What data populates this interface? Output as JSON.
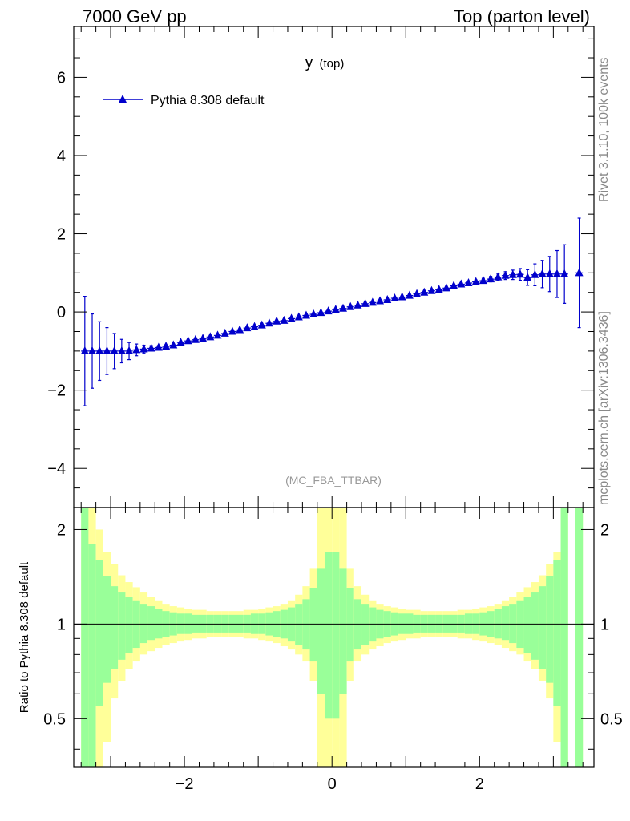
{
  "header": {
    "left": "7000 GeV pp",
    "right": "Top (parton level)"
  },
  "side": {
    "rivet": "Rivet 3.1.10,  100k events",
    "mcplots": "mcplots.cern.ch [arXiv:1306.3436]"
  },
  "chart_data": {
    "type": "scatter",
    "title": "y",
    "title_sub": "(top)",
    "watermark": "(MC_FBA_TTBAR)",
    "xlim": [
      -3.5,
      3.55
    ],
    "ylim": [
      -5,
      7.3
    ],
    "xticks": [
      -2,
      0,
      2
    ],
    "yticks": [
      -4,
      -2,
      0,
      2,
      4,
      6
    ],
    "grid": false,
    "legend": {
      "position": "top-left",
      "entries": [
        "Pythia 8.308 default"
      ]
    },
    "colors": {
      "series": "#0000cc",
      "band_inner": "#99ff99",
      "band_outer": "#ffff99"
    },
    "series": [
      {
        "name": "Pythia 8.308 default",
        "x": [
          -3.35,
          -3.25,
          -3.15,
          -3.05,
          -2.95,
          -2.85,
          -2.75,
          -2.65,
          -2.55,
          -2.45,
          -2.35,
          -2.25,
          -2.15,
          -2.05,
          -1.95,
          -1.85,
          -1.75,
          -1.65,
          -1.55,
          -1.45,
          -1.35,
          -1.25,
          -1.15,
          -1.05,
          -0.95,
          -0.85,
          -0.75,
          -0.65,
          -0.55,
          -0.45,
          -0.35,
          -0.25,
          -0.15,
          -0.05,
          0.05,
          0.15,
          0.25,
          0.35,
          0.45,
          0.55,
          0.65,
          0.75,
          0.85,
          0.95,
          1.05,
          1.15,
          1.25,
          1.35,
          1.45,
          1.55,
          1.65,
          1.75,
          1.85,
          1.95,
          2.05,
          2.15,
          2.25,
          2.35,
          2.45,
          2.55,
          2.65,
          2.75,
          2.85,
          2.95,
          3.05,
          3.15,
          3.35
        ],
        "y": [
          -1.0,
          -1.0,
          -1.0,
          -1.0,
          -1.0,
          -1.0,
          -1.0,
          -0.97,
          -0.95,
          -0.93,
          -0.91,
          -0.88,
          -0.85,
          -0.78,
          -0.74,
          -0.71,
          -0.68,
          -0.64,
          -0.6,
          -0.55,
          -0.5,
          -0.46,
          -0.41,
          -0.38,
          -0.34,
          -0.29,
          -0.24,
          -0.22,
          -0.17,
          -0.13,
          -0.09,
          -0.06,
          -0.02,
          0.02,
          0.06,
          0.09,
          0.13,
          0.17,
          0.21,
          0.24,
          0.28,
          0.31,
          0.35,
          0.38,
          0.42,
          0.46,
          0.5,
          0.54,
          0.57,
          0.61,
          0.67,
          0.71,
          0.74,
          0.77,
          0.8,
          0.84,
          0.89,
          0.93,
          0.95,
          0.96,
          0.88,
          0.95,
          0.97,
          0.97,
          0.97,
          0.97,
          1.0
        ],
        "yerr": [
          1.4,
          0.95,
          0.75,
          0.6,
          0.45,
          0.3,
          0.22,
          0.15,
          0.1,
          0.07,
          0.05,
          0.04,
          0.03,
          0.02,
          0.02,
          0.02,
          0.02,
          0.02,
          0.02,
          0.02,
          0.02,
          0.02,
          0.02,
          0.02,
          0.02,
          0.02,
          0.02,
          0.02,
          0.02,
          0.02,
          0.02,
          0.02,
          0.02,
          0.02,
          0.02,
          0.02,
          0.02,
          0.02,
          0.02,
          0.02,
          0.02,
          0.02,
          0.02,
          0.02,
          0.02,
          0.02,
          0.02,
          0.02,
          0.02,
          0.03,
          0.03,
          0.04,
          0.05,
          0.05,
          0.06,
          0.07,
          0.08,
          0.1,
          0.12,
          0.15,
          0.2,
          0.28,
          0.35,
          0.45,
          0.6,
          0.75,
          1.4
        ]
      }
    ],
    "ratio": {
      "ylabel": "Ratio to Pythia 8.308 default",
      "ylim": [
        0.35,
        2.35
      ],
      "yticks": [
        0.5,
        1,
        2
      ],
      "reference": 1,
      "bins_x": [
        -3.35,
        -3.25,
        -3.15,
        -3.05,
        -2.95,
        -2.85,
        -2.75,
        -2.65,
        -2.55,
        -2.45,
        -2.35,
        -2.25,
        -2.15,
        -2.05,
        -1.95,
        -1.85,
        -1.75,
        -1.65,
        -1.55,
        -1.45,
        -1.35,
        -1.25,
        -1.15,
        -1.05,
        -0.95,
        -0.85,
        -0.75,
        -0.65,
        -0.55,
        -0.45,
        -0.35,
        -0.25,
        -0.15,
        -0.05,
        0.05,
        0.15,
        0.25,
        0.35,
        0.45,
        0.55,
        0.65,
        0.75,
        0.85,
        0.95,
        1.05,
        1.15,
        1.25,
        1.35,
        1.45,
        1.55,
        1.65,
        1.75,
        1.85,
        1.95,
        2.05,
        2.15,
        2.25,
        2.35,
        2.45,
        2.55,
        2.65,
        2.75,
        2.85,
        2.95,
        3.05,
        3.15,
        3.35
      ],
      "inner_up": [
        2.4,
        1.8,
        1.6,
        1.42,
        1.32,
        1.26,
        1.22,
        1.19,
        1.16,
        1.14,
        1.12,
        1.1,
        1.09,
        1.08,
        1.08,
        1.07,
        1.07,
        1.07,
        1.07,
        1.07,
        1.07,
        1.07,
        1.07,
        1.08,
        1.08,
        1.09,
        1.1,
        1.11,
        1.13,
        1.16,
        1.2,
        1.3,
        1.5,
        1.7,
        1.7,
        1.5,
        1.3,
        1.2,
        1.16,
        1.13,
        1.11,
        1.1,
        1.09,
        1.08,
        1.08,
        1.07,
        1.07,
        1.07,
        1.07,
        1.07,
        1.07,
        1.07,
        1.08,
        1.08,
        1.09,
        1.1,
        1.12,
        1.14,
        1.16,
        1.19,
        1.22,
        1.26,
        1.32,
        1.42,
        1.6,
        2.4,
        2.4
      ],
      "outer_up": [
        2.4,
        2.4,
        2.0,
        1.7,
        1.55,
        1.43,
        1.36,
        1.31,
        1.26,
        1.22,
        1.19,
        1.16,
        1.14,
        1.13,
        1.12,
        1.11,
        1.11,
        1.1,
        1.1,
        1.1,
        1.1,
        1.1,
        1.11,
        1.11,
        1.12,
        1.13,
        1.14,
        1.16,
        1.19,
        1.24,
        1.32,
        1.5,
        2.4,
        2.4,
        2.4,
        2.4,
        1.5,
        1.32,
        1.24,
        1.19,
        1.16,
        1.14,
        1.13,
        1.12,
        1.11,
        1.11,
        1.1,
        1.1,
        1.1,
        1.1,
        1.1,
        1.11,
        1.11,
        1.12,
        1.13,
        1.14,
        1.16,
        1.19,
        1.22,
        1.26,
        1.31,
        1.36,
        1.43,
        1.55,
        1.7,
        2.4,
        2.4
      ],
      "inner_dn": [
        0.3,
        0.3,
        0.55,
        0.65,
        0.72,
        0.77,
        0.81,
        0.84,
        0.87,
        0.89,
        0.9,
        0.91,
        0.92,
        0.93,
        0.93,
        0.94,
        0.94,
        0.94,
        0.94,
        0.94,
        0.94,
        0.94,
        0.94,
        0.93,
        0.93,
        0.92,
        0.91,
        0.9,
        0.88,
        0.86,
        0.83,
        0.76,
        0.6,
        0.5,
        0.5,
        0.6,
        0.76,
        0.83,
        0.86,
        0.88,
        0.9,
        0.91,
        0.92,
        0.93,
        0.93,
        0.94,
        0.94,
        0.94,
        0.94,
        0.94,
        0.94,
        0.94,
        0.93,
        0.93,
        0.92,
        0.91,
        0.9,
        0.89,
        0.87,
        0.84,
        0.81,
        0.77,
        0.72,
        0.65,
        0.55,
        0.3,
        0.3
      ],
      "outer_dn": [
        0.3,
        0.3,
        0.3,
        0.42,
        0.58,
        0.66,
        0.72,
        0.76,
        0.8,
        0.82,
        0.84,
        0.86,
        0.87,
        0.88,
        0.89,
        0.9,
        0.9,
        0.91,
        0.91,
        0.91,
        0.91,
        0.91,
        0.9,
        0.9,
        0.89,
        0.88,
        0.87,
        0.85,
        0.83,
        0.8,
        0.76,
        0.66,
        0.3,
        0.3,
        0.3,
        0.3,
        0.66,
        0.76,
        0.8,
        0.83,
        0.85,
        0.87,
        0.88,
        0.89,
        0.9,
        0.9,
        0.91,
        0.91,
        0.91,
        0.91,
        0.91,
        0.9,
        0.9,
        0.89,
        0.88,
        0.87,
        0.86,
        0.84,
        0.82,
        0.8,
        0.76,
        0.72,
        0.66,
        0.58,
        0.42,
        0.3,
        0.3
      ]
    }
  }
}
